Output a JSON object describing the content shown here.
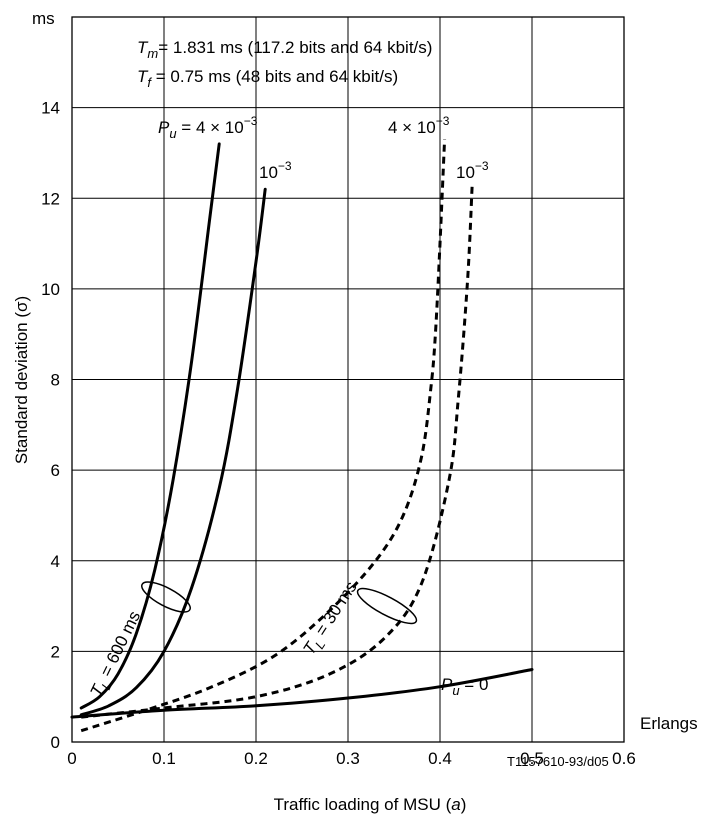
{
  "chart_data": {
    "type": "line",
    "xlabel": "Traffic loading of MSU (a)",
    "ylabel": "Standard deviation (σ)",
    "x_unit": "Erlangs",
    "y_unit": "ms",
    "xlim": [
      0,
      0.6
    ],
    "ylim": [
      0,
      16
    ],
    "x_ticks": [
      "0",
      "0.1",
      "0.2",
      "0.3",
      "0.4",
      "0.5",
      "0.6"
    ],
    "y_ticks": [
      "0",
      "2",
      "4",
      "6",
      "8",
      "10",
      "12",
      "14"
    ],
    "grid": true,
    "params": {
      "tm_lead": "T",
      "tm_sub": "m",
      "tm_text": "=  1.831 ms (117.2 bits and 64 kbit/s)",
      "tf_lead": "T",
      "tf_sub": "f",
      "tf_text": " =  0.75 ms (48 bits and 64 kbit/s)"
    },
    "series": [
      {
        "group": "TL600",
        "pu": "4e-3",
        "style": "solid",
        "x": [
          0.01,
          0.03,
          0.05,
          0.07,
          0.09,
          0.11,
          0.13,
          0.15,
          0.16
        ],
        "y": [
          0.75,
          1.0,
          1.5,
          2.4,
          3.8,
          5.8,
          8.4,
          11.6,
          13.2
        ]
      },
      {
        "group": "TL600",
        "pu": "1e-3",
        "style": "solid",
        "x": [
          0.01,
          0.04,
          0.07,
          0.1,
          0.13,
          0.16,
          0.18,
          0.2,
          0.21
        ],
        "y": [
          0.6,
          0.8,
          1.2,
          2.0,
          3.4,
          5.6,
          7.8,
          10.6,
          12.2
        ]
      },
      {
        "group": "TL30",
        "pu": "4e-3",
        "style": "dashed",
        "x": [
          0.01,
          0.08,
          0.15,
          0.22,
          0.28,
          0.33,
          0.36,
          0.38,
          0.39,
          0.395,
          0.4,
          0.405
        ],
        "y": [
          0.25,
          0.7,
          1.2,
          1.9,
          2.9,
          4.0,
          5.0,
          6.3,
          7.8,
          9.0,
          11.0,
          13.3
        ]
      },
      {
        "group": "TL30",
        "pu": "1e-3",
        "style": "dashed",
        "x": [
          0.01,
          0.1,
          0.2,
          0.28,
          0.34,
          0.38,
          0.41,
          0.42,
          0.43,
          0.435
        ],
        "y": [
          0.55,
          0.75,
          1.0,
          1.5,
          2.3,
          3.5,
          5.8,
          7.6,
          10.2,
          12.3
        ]
      },
      {
        "group": "Pu0",
        "pu": "0",
        "style": "solid",
        "x": [
          0.0,
          0.1,
          0.2,
          0.3,
          0.4,
          0.5
        ],
        "y": [
          0.55,
          0.7,
          0.8,
          0.97,
          1.22,
          1.6
        ]
      }
    ],
    "annotations": {
      "pu_prefix": "P",
      "pu_sub": "u",
      "eq": " = ",
      "times10": "4 × 10",
      "ten": "10",
      "exp": "−3",
      "zero": " = 0",
      "tl_lead": "T",
      "tl_sub": "L",
      "tl600_text": " = 600 ms",
      "tl30_text": " = 30 ms"
    },
    "figure_id": "T1157610-93/d05"
  }
}
